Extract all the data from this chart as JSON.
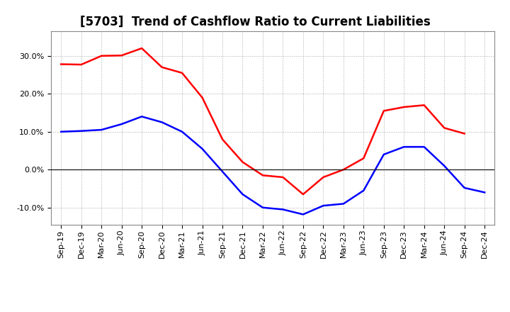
{
  "title": "[5703]  Trend of Cashflow Ratio to Current Liabilities",
  "x_labels": [
    "Sep-19",
    "Dec-19",
    "Mar-20",
    "Jun-20",
    "Sep-20",
    "Dec-20",
    "Mar-21",
    "Jun-21",
    "Sep-21",
    "Dec-21",
    "Mar-22",
    "Jun-22",
    "Sep-22",
    "Dec-22",
    "Mar-23",
    "Jun-23",
    "Sep-23",
    "Dec-23",
    "Mar-24",
    "Jun-24",
    "Sep-24",
    "Dec-24"
  ],
  "operating_cf": [
    0.278,
    0.277,
    0.3,
    0.301,
    0.32,
    0.27,
    0.255,
    0.19,
    0.08,
    0.02,
    -0.015,
    -0.02,
    -0.065,
    -0.02,
    0.0,
    0.03,
    0.155,
    0.165,
    0.17,
    0.11,
    0.095,
    null
  ],
  "free_cf": [
    0.1,
    0.102,
    0.105,
    0.12,
    0.14,
    0.125,
    0.1,
    0.055,
    -0.005,
    -0.065,
    -0.1,
    -0.105,
    -0.118,
    -0.095,
    -0.09,
    -0.055,
    0.04,
    0.06,
    0.06,
    0.01,
    -0.048,
    -0.06
  ],
  "ylim": [
    -0.145,
    0.365
  ],
  "yticks": [
    -0.1,
    0.0,
    0.1,
    0.2,
    0.3
  ],
  "operating_color": "#FF0000",
  "free_color": "#0000FF",
  "background_color": "#FFFFFF",
  "grid_color": "#AAAAAA",
  "title_fontsize": 12,
  "legend_fontsize": 9.5,
  "tick_fontsize": 8
}
